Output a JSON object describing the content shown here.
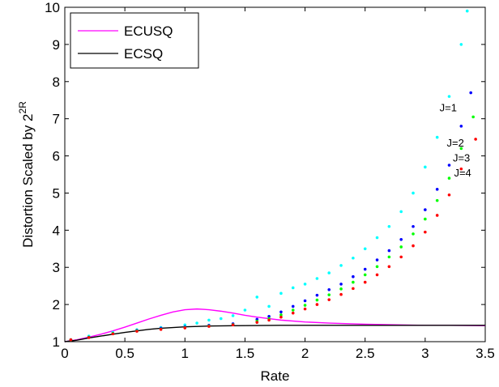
{
  "chart_data": {
    "type": "line",
    "xlabel": "Rate",
    "ylabel": {
      "base": "Distortion Scaled by 2",
      "superscript": "2R"
    },
    "xlim": [
      0,
      3.5
    ],
    "ylim": [
      1,
      10
    ],
    "xticks": [
      "0",
      "0.5",
      "1",
      "1.5",
      "2",
      "2.5",
      "3",
      "3.5"
    ],
    "yticks": [
      "1",
      "2",
      "3",
      "4",
      "5",
      "6",
      "7",
      "8",
      "9",
      "10"
    ],
    "grid": false,
    "legend": {
      "placement": "top-left"
    },
    "series": [
      {
        "name": "ECUSQ",
        "style": "line",
        "color": "#ff00ff",
        "x": [
          0,
          0.1,
          0.2,
          0.3,
          0.4,
          0.5,
          0.6,
          0.7,
          0.8,
          0.9,
          1.0,
          1.1,
          1.2,
          1.3,
          1.4,
          1.5,
          1.6,
          1.7,
          1.8,
          2.0,
          2.2,
          2.5,
          2.8,
          3.0,
          3.2,
          3.5
        ],
        "y": [
          1.0,
          1.05,
          1.12,
          1.2,
          1.29,
          1.39,
          1.5,
          1.61,
          1.71,
          1.8,
          1.86,
          1.88,
          1.86,
          1.82,
          1.77,
          1.71,
          1.66,
          1.62,
          1.58,
          1.53,
          1.5,
          1.47,
          1.45,
          1.44,
          1.44,
          1.43
        ]
      },
      {
        "name": "ECSQ",
        "style": "line",
        "color": "#000000",
        "x": [
          0,
          0.1,
          0.2,
          0.3,
          0.4,
          0.5,
          0.6,
          0.7,
          0.8,
          0.9,
          1.0,
          1.2,
          1.4,
          1.6,
          1.8,
          2.0,
          2.5,
          3.0,
          3.5
        ],
        "y": [
          1.0,
          1.04,
          1.1,
          1.15,
          1.2,
          1.25,
          1.29,
          1.33,
          1.36,
          1.38,
          1.4,
          1.42,
          1.43,
          1.435,
          1.44,
          1.44,
          1.44,
          1.44,
          1.44
        ]
      },
      {
        "name": "J=1",
        "style": "points",
        "color": "#00ffff",
        "x": [
          0.05,
          0.2,
          0.4,
          0.6,
          0.8,
          1.0,
          1.1,
          1.2,
          1.3,
          1.4,
          1.5,
          1.6,
          1.7,
          1.8,
          1.9,
          2.0,
          2.1,
          2.2,
          2.3,
          2.4,
          2.5,
          2.6,
          2.7,
          2.8,
          2.9,
          3.0,
          3.1,
          3.2,
          3.3,
          3.35
        ],
        "y": [
          1.05,
          1.15,
          1.25,
          1.32,
          1.38,
          1.45,
          1.5,
          1.58,
          1.62,
          1.7,
          1.85,
          2.2,
          1.95,
          2.3,
          2.45,
          2.55,
          2.7,
          2.85,
          3.05,
          3.25,
          3.5,
          3.8,
          4.1,
          4.5,
          5.0,
          5.7,
          6.5,
          7.6,
          9.0,
          9.9
        ]
      },
      {
        "name": "J=2",
        "style": "points",
        "color": "#0000ff",
        "x": [
          0.05,
          0.2,
          0.4,
          0.6,
          0.8,
          1.0,
          1.2,
          1.4,
          1.6,
          1.7,
          1.8,
          1.9,
          2.0,
          2.1,
          2.2,
          2.3,
          2.4,
          2.5,
          2.6,
          2.7,
          2.8,
          2.9,
          3.0,
          3.1,
          3.2,
          3.3,
          3.38
        ],
        "y": [
          1.05,
          1.12,
          1.22,
          1.3,
          1.36,
          1.4,
          1.44,
          1.48,
          1.6,
          1.68,
          1.8,
          1.95,
          2.1,
          2.25,
          2.4,
          2.55,
          2.75,
          2.95,
          3.2,
          3.45,
          3.75,
          4.1,
          4.55,
          5.1,
          5.75,
          6.8,
          7.7
        ]
      },
      {
        "name": "J=3",
        "style": "points",
        "color": "#00ff00",
        "x": [
          0.05,
          0.2,
          0.4,
          0.6,
          0.8,
          1.0,
          1.2,
          1.4,
          1.6,
          1.7,
          1.8,
          1.9,
          2.0,
          2.1,
          2.2,
          2.3,
          2.4,
          2.5,
          2.6,
          2.7,
          2.8,
          2.9,
          3.0,
          3.1,
          3.2,
          3.3,
          3.4
        ],
        "y": [
          1.05,
          1.12,
          1.22,
          1.29,
          1.34,
          1.38,
          1.42,
          1.46,
          1.55,
          1.62,
          1.72,
          1.85,
          1.98,
          2.12,
          2.26,
          2.42,
          2.6,
          2.8,
          3.02,
          3.28,
          3.55,
          3.9,
          4.3,
          4.8,
          5.4,
          6.2,
          7.05
        ]
      },
      {
        "name": "J=4",
        "style": "points",
        "color": "#ff0000",
        "x": [
          0.05,
          0.2,
          0.4,
          0.6,
          0.8,
          1.0,
          1.2,
          1.4,
          1.6,
          1.7,
          1.8,
          1.9,
          2.0,
          2.1,
          2.2,
          2.3,
          2.4,
          2.5,
          2.6,
          2.7,
          2.8,
          2.9,
          3.0,
          3.1,
          3.2,
          3.3,
          3.42
        ],
        "y": [
          1.05,
          1.11,
          1.21,
          1.28,
          1.33,
          1.37,
          1.41,
          1.45,
          1.52,
          1.58,
          1.66,
          1.77,
          1.88,
          2.0,
          2.13,
          2.27,
          2.43,
          2.6,
          2.8,
          3.02,
          3.28,
          3.58,
          3.95,
          4.4,
          4.95,
          5.65,
          6.45
        ]
      }
    ],
    "annotations": [
      {
        "text": "J=1",
        "x": 3.12,
        "y": 7.2
      },
      {
        "text": "J=2",
        "x": 3.18,
        "y": 6.25
      },
      {
        "text": "J=3",
        "x": 3.23,
        "y": 5.85
      },
      {
        "text": "J=4",
        "x": 3.24,
        "y": 5.45
      }
    ]
  }
}
